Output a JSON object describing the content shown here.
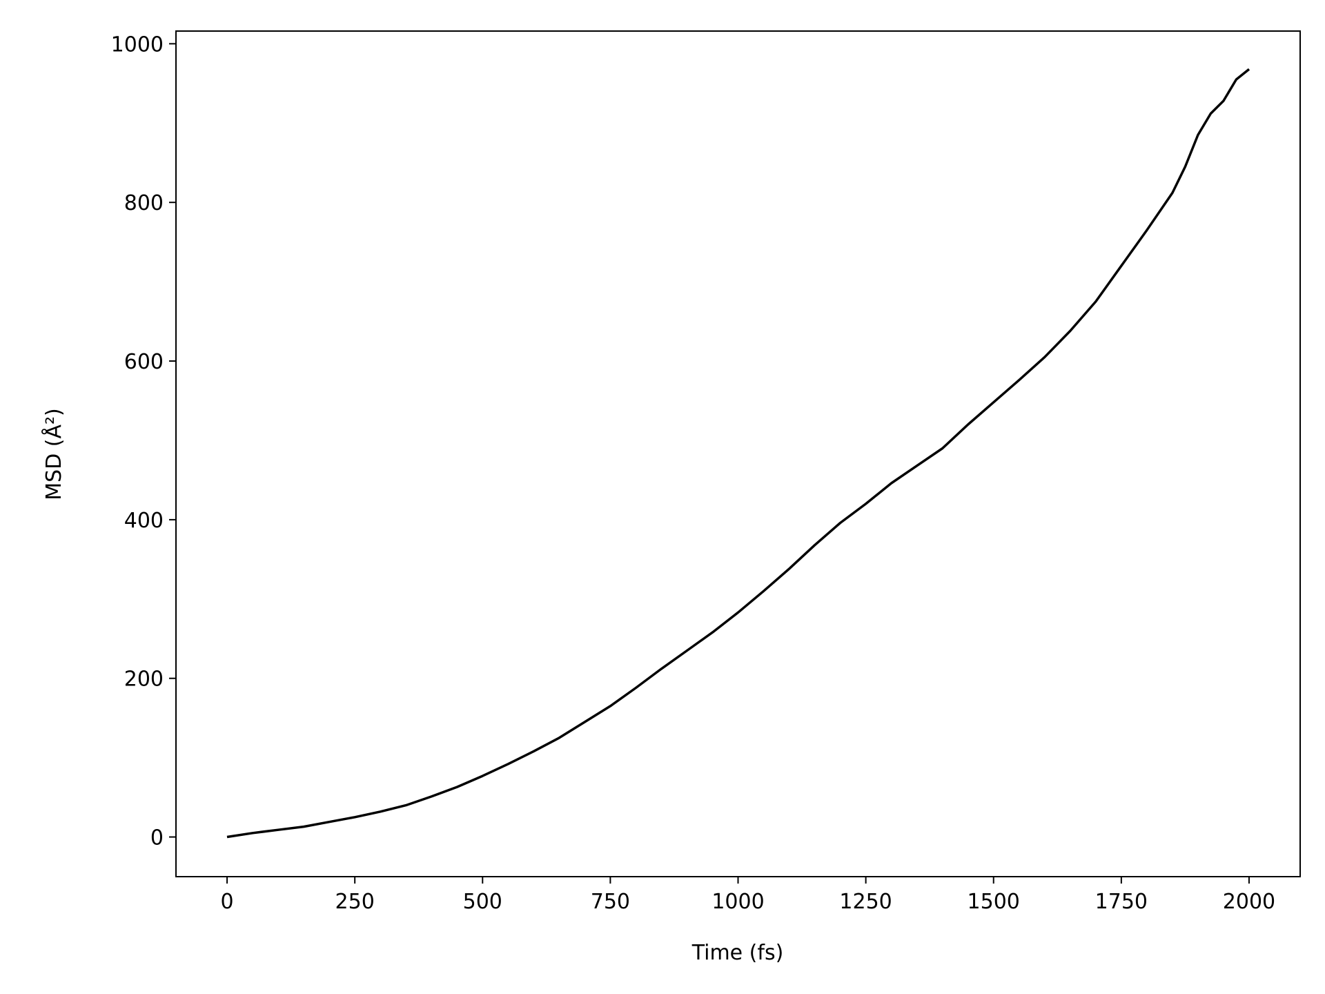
{
  "chart_data": {
    "type": "line",
    "title": "",
    "xlabel": "Time (fs)",
    "ylabel": "MSD (Å²)",
    "ylabel_main": "MSD (",
    "ylabel_unit": "Å",
    "ylabel_sup": "2",
    "ylabel_close": ")",
    "xlim": [
      -100,
      2100
    ],
    "ylim": [
      -50,
      1016
    ],
    "xticks": [
      0,
      250,
      500,
      750,
      1000,
      1250,
      1500,
      1750,
      2000
    ],
    "yticks": [
      0,
      200,
      400,
      600,
      800,
      1000
    ],
    "grid": false,
    "line_color": "#000000",
    "series": [
      {
        "x": [
          0,
          50,
          100,
          150,
          200,
          250,
          300,
          350,
          400,
          450,
          500,
          550,
          600,
          650,
          700,
          750,
          800,
          850,
          900,
          950,
          1000,
          1050,
          1100,
          1150,
          1200,
          1250,
          1300,
          1350,
          1400,
          1450,
          1500,
          1550,
          1600,
          1650,
          1700,
          1750,
          1800,
          1850,
          1875,
          1900,
          1925,
          1950,
          1975,
          2000
        ],
        "y": [
          0,
          5,
          9,
          13,
          19,
          25,
          32,
          40,
          51,
          63,
          77,
          92,
          108,
          125,
          145,
          165,
          188,
          212,
          235,
          258,
          283,
          310,
          338,
          368,
          396,
          420,
          446,
          468,
          490,
          520,
          548,
          576,
          605,
          638,
          675,
          720,
          765,
          812,
          845,
          885,
          912,
          928,
          955,
          968
        ]
      }
    ]
  }
}
